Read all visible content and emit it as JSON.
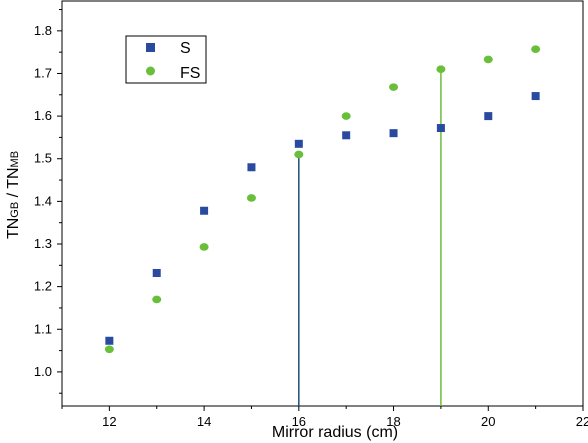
{
  "chart_data": {
    "type": "scatter",
    "xlabel": "Mirror radius (cm)",
    "ylabel": {
      "main": "TN",
      "sub1": "GB",
      "sep": " / TN",
      "sub2": "MB"
    },
    "xlim": [
      11,
      22
    ],
    "ylim": [
      0.92,
      1.87
    ],
    "x_ticks": [
      12,
      14,
      16,
      18,
      20,
      22
    ],
    "y_ticks": [
      1.0,
      1.1,
      1.2,
      1.3,
      1.4,
      1.5,
      1.6,
      1.7,
      1.8
    ],
    "x_tick_labels": [
      "12",
      "14",
      "16",
      "18",
      "20",
      "22"
    ],
    "y_tick_labels": [
      "1.0",
      "1.1",
      "1.2",
      "1.3",
      "1.4",
      "1.5",
      "1.6",
      "1.7",
      "1.8"
    ],
    "grid": false,
    "legend_position": "top-left",
    "series": [
      {
        "name": "S",
        "marker": "square",
        "color": "#2a4aa0",
        "x": [
          12,
          13,
          14,
          15,
          16,
          17,
          18,
          19,
          20,
          21
        ],
        "y": [
          1.073,
          1.232,
          1.378,
          1.48,
          1.535,
          1.555,
          1.56,
          1.572,
          1.6,
          1.647
        ]
      },
      {
        "name": "FS",
        "marker": "circle",
        "color": "#6abf3a",
        "x": [
          12,
          13,
          14,
          15,
          16,
          17,
          18,
          19,
          20,
          21
        ],
        "y": [
          1.053,
          1.17,
          1.293,
          1.408,
          1.51,
          1.6,
          1.668,
          1.71,
          1.733,
          1.757
        ]
      }
    ],
    "reference_lines": [
      {
        "x": 16,
        "y_to": 1.51,
        "color": "#1f4e79"
      },
      {
        "x": 19,
        "y_to": 1.71,
        "color": "#6abf3a"
      }
    ]
  }
}
